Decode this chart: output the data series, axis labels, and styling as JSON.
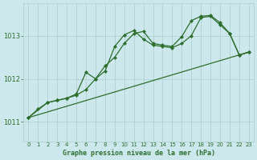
{
  "title": "Graphe pression niveau de la mer (hPa)",
  "background_color": "#cce8ec",
  "grid_color": "#aacccc",
  "line_color": "#2d6e2d",
  "xlim": [
    -0.5,
    23.5
  ],
  "ylim": [
    1010.55,
    1013.75
  ],
  "yticks": [
    1011,
    1012,
    1013
  ],
  "xticks": [
    0,
    1,
    2,
    3,
    4,
    5,
    6,
    7,
    8,
    9,
    10,
    11,
    12,
    13,
    14,
    15,
    16,
    17,
    18,
    19,
    20,
    21,
    22,
    23
  ],
  "series": [
    {
      "x": [
        0,
        23
      ],
      "y": [
        1011.1,
        1012.62
      ],
      "has_marker": false
    },
    {
      "x": [
        0,
        1,
        2,
        3,
        4,
        5,
        6,
        7,
        8,
        9,
        10,
        11,
        12,
        13,
        14,
        15,
        16,
        17,
        18,
        19,
        20,
        21,
        22,
        23
      ],
      "y": [
        1011.1,
        1011.3,
        1011.45,
        1011.5,
        1011.55,
        1011.62,
        1011.75,
        1012.0,
        1012.18,
        1012.75,
        1013.02,
        1013.12,
        1012.92,
        1012.78,
        1012.75,
        1012.72,
        1012.82,
        1013.0,
        1013.42,
        1013.45,
        1013.25,
        1013.05,
        1012.55,
        1012.62
      ],
      "has_marker": true
    },
    {
      "x": [
        0,
        2,
        3,
        4,
        5,
        6,
        7,
        8,
        9,
        10,
        11,
        12,
        13,
        14,
        15,
        16,
        17,
        18,
        19,
        20,
        21,
        22,
        23
      ],
      "y": [
        1011.1,
        1011.45,
        1011.5,
        1011.55,
        1011.65,
        1012.15,
        1012.0,
        1012.3,
        1012.5,
        1012.82,
        1013.05,
        1013.1,
        1012.82,
        1012.78,
        1012.75,
        1012.98,
        1013.35,
        1013.45,
        1013.47,
        1013.3,
        1013.05,
        1012.55,
        1012.62
      ],
      "has_marker": true
    }
  ]
}
